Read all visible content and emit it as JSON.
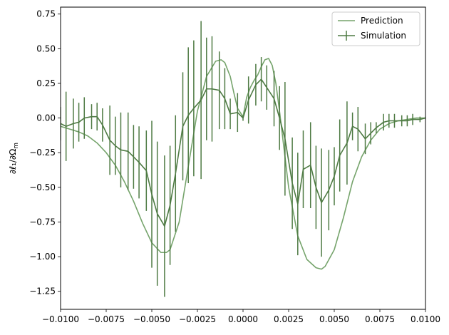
{
  "chart_data": {
    "type": "line",
    "title": "",
    "xlabel": "",
    "ylabel": "∂ℓ₁/∂Ω",
    "ylabel_sub": "m",
    "xlim": [
      -0.01,
      0.01
    ],
    "ylim": [
      -1.38,
      0.8
    ],
    "grid": false,
    "legend_position": "top-right",
    "x_ticks": [
      -0.01,
      -0.0075,
      -0.005,
      -0.0025,
      0.0,
      0.0025,
      0.005,
      0.0075,
      0.01
    ],
    "x_tick_labels": [
      "−0.0100",
      "−0.0075",
      "−0.0050",
      "−0.0025",
      "0.0000",
      "0.0025",
      "0.0050",
      "0.0075",
      "0.0100"
    ],
    "y_ticks": [
      -1.25,
      -1.0,
      -0.75,
      -0.5,
      -0.25,
      0.0,
      0.25,
      0.5,
      0.75
    ],
    "y_tick_labels": [
      "−1.25",
      "−1.00",
      "−0.75",
      "−0.50",
      "−0.25",
      "0.00",
      "0.25",
      "0.50",
      "0.75"
    ],
    "series": [
      {
        "name": "Prediction",
        "kind": "line",
        "color": "#76a46c",
        "x": [
          -0.01,
          -0.0095,
          -0.009,
          -0.0085,
          -0.008,
          -0.0075,
          -0.007,
          -0.0065,
          -0.006,
          -0.0055,
          -0.005,
          -0.0045,
          -0.0042,
          -0.004,
          -0.0035,
          -0.003,
          -0.0025,
          -0.002,
          -0.0015,
          -0.0012,
          -0.001,
          -0.0007,
          -0.0005,
          -0.0003,
          0.0,
          0.0002,
          0.0004,
          0.0006,
          0.0008,
          0.001,
          0.0012,
          0.0014,
          0.0016,
          0.0018,
          0.002,
          0.0025,
          0.003,
          0.0035,
          0.004,
          0.0043,
          0.0045,
          0.005,
          0.0055,
          0.006,
          0.0065,
          0.007,
          0.0075,
          0.008,
          0.0085,
          0.009,
          0.0095,
          0.01
        ],
        "y": [
          -0.06,
          -0.08,
          -0.1,
          -0.13,
          -0.18,
          -0.25,
          -0.34,
          -0.46,
          -0.6,
          -0.76,
          -0.9,
          -0.97,
          -0.97,
          -0.95,
          -0.75,
          -0.35,
          0.05,
          0.3,
          0.41,
          0.42,
          0.4,
          0.3,
          0.18,
          0.07,
          0.01,
          0.15,
          0.22,
          0.27,
          0.31,
          0.37,
          0.42,
          0.43,
          0.38,
          0.25,
          0.05,
          -0.5,
          -0.85,
          -1.02,
          -1.08,
          -1.09,
          -1.07,
          -0.95,
          -0.72,
          -0.46,
          -0.28,
          -0.16,
          -0.08,
          -0.04,
          -0.02,
          -0.01,
          0.0,
          0.0
        ]
      },
      {
        "name": "Simulation",
        "kind": "errorbar",
        "color": "#4e7a43",
        "x": [
          -0.01,
          -0.0097,
          -0.0093,
          -0.009,
          -0.0087,
          -0.0083,
          -0.008,
          -0.0077,
          -0.0073,
          -0.007,
          -0.0067,
          -0.0063,
          -0.006,
          -0.0057,
          -0.0053,
          -0.005,
          -0.0047,
          -0.0043,
          -0.004,
          -0.0037,
          -0.0033,
          -0.003,
          -0.0027,
          -0.0023,
          -0.002,
          -0.0017,
          -0.0013,
          -0.001,
          -0.0007,
          -0.0003,
          0.0,
          0.0003,
          0.0007,
          0.001,
          0.0013,
          0.0017,
          0.002,
          0.0023,
          0.0027,
          0.003,
          0.0033,
          0.0037,
          0.004,
          0.0043,
          0.0047,
          0.005,
          0.0053,
          0.0057,
          0.006,
          0.0063,
          0.0067,
          0.007,
          0.0073,
          0.0077,
          0.008,
          0.0083,
          0.0087,
          0.009,
          0.0093,
          0.0097,
          0.01
        ],
        "y": [
          -0.04,
          -0.06,
          -0.04,
          -0.03,
          0.0,
          0.01,
          0.01,
          -0.05,
          -0.16,
          -0.2,
          -0.23,
          -0.24,
          -0.28,
          -0.32,
          -0.38,
          -0.55,
          -0.69,
          -0.78,
          -0.63,
          -0.4,
          -0.06,
          0.02,
          0.07,
          0.13,
          0.21,
          0.21,
          0.2,
          0.14,
          0.03,
          0.04,
          0.0,
          0.13,
          0.24,
          0.28,
          0.22,
          0.14,
          0.0,
          -0.15,
          -0.47,
          -0.62,
          -0.37,
          -0.34,
          -0.5,
          -0.61,
          -0.52,
          -0.42,
          -0.27,
          -0.18,
          -0.06,
          -0.08,
          -0.15,
          -0.11,
          -0.07,
          -0.03,
          -0.02,
          -0.02,
          -0.02,
          -0.02,
          -0.01,
          -0.01,
          0.0
        ],
        "err": [
          0.12,
          0.25,
          0.18,
          0.14,
          0.15,
          0.09,
          0.1,
          0.12,
          0.25,
          0.21,
          0.27,
          0.28,
          0.23,
          0.26,
          0.29,
          0.53,
          0.52,
          0.51,
          0.43,
          0.42,
          0.39,
          0.49,
          0.49,
          0.57,
          0.37,
          0.38,
          0.28,
          0.22,
          0.11,
          0.14,
          0.02,
          0.17,
          0.15,
          0.16,
          0.16,
          0.2,
          0.23,
          0.41,
          0.33,
          0.37,
          0.28,
          0.31,
          0.3,
          0.39,
          0.29,
          0.21,
          0.26,
          0.3,
          0.1,
          0.16,
          0.11,
          0.08,
          0.04,
          0.06,
          0.05,
          0.05,
          0.04,
          0.04,
          0.04,
          0.02,
          0.01
        ]
      }
    ]
  }
}
